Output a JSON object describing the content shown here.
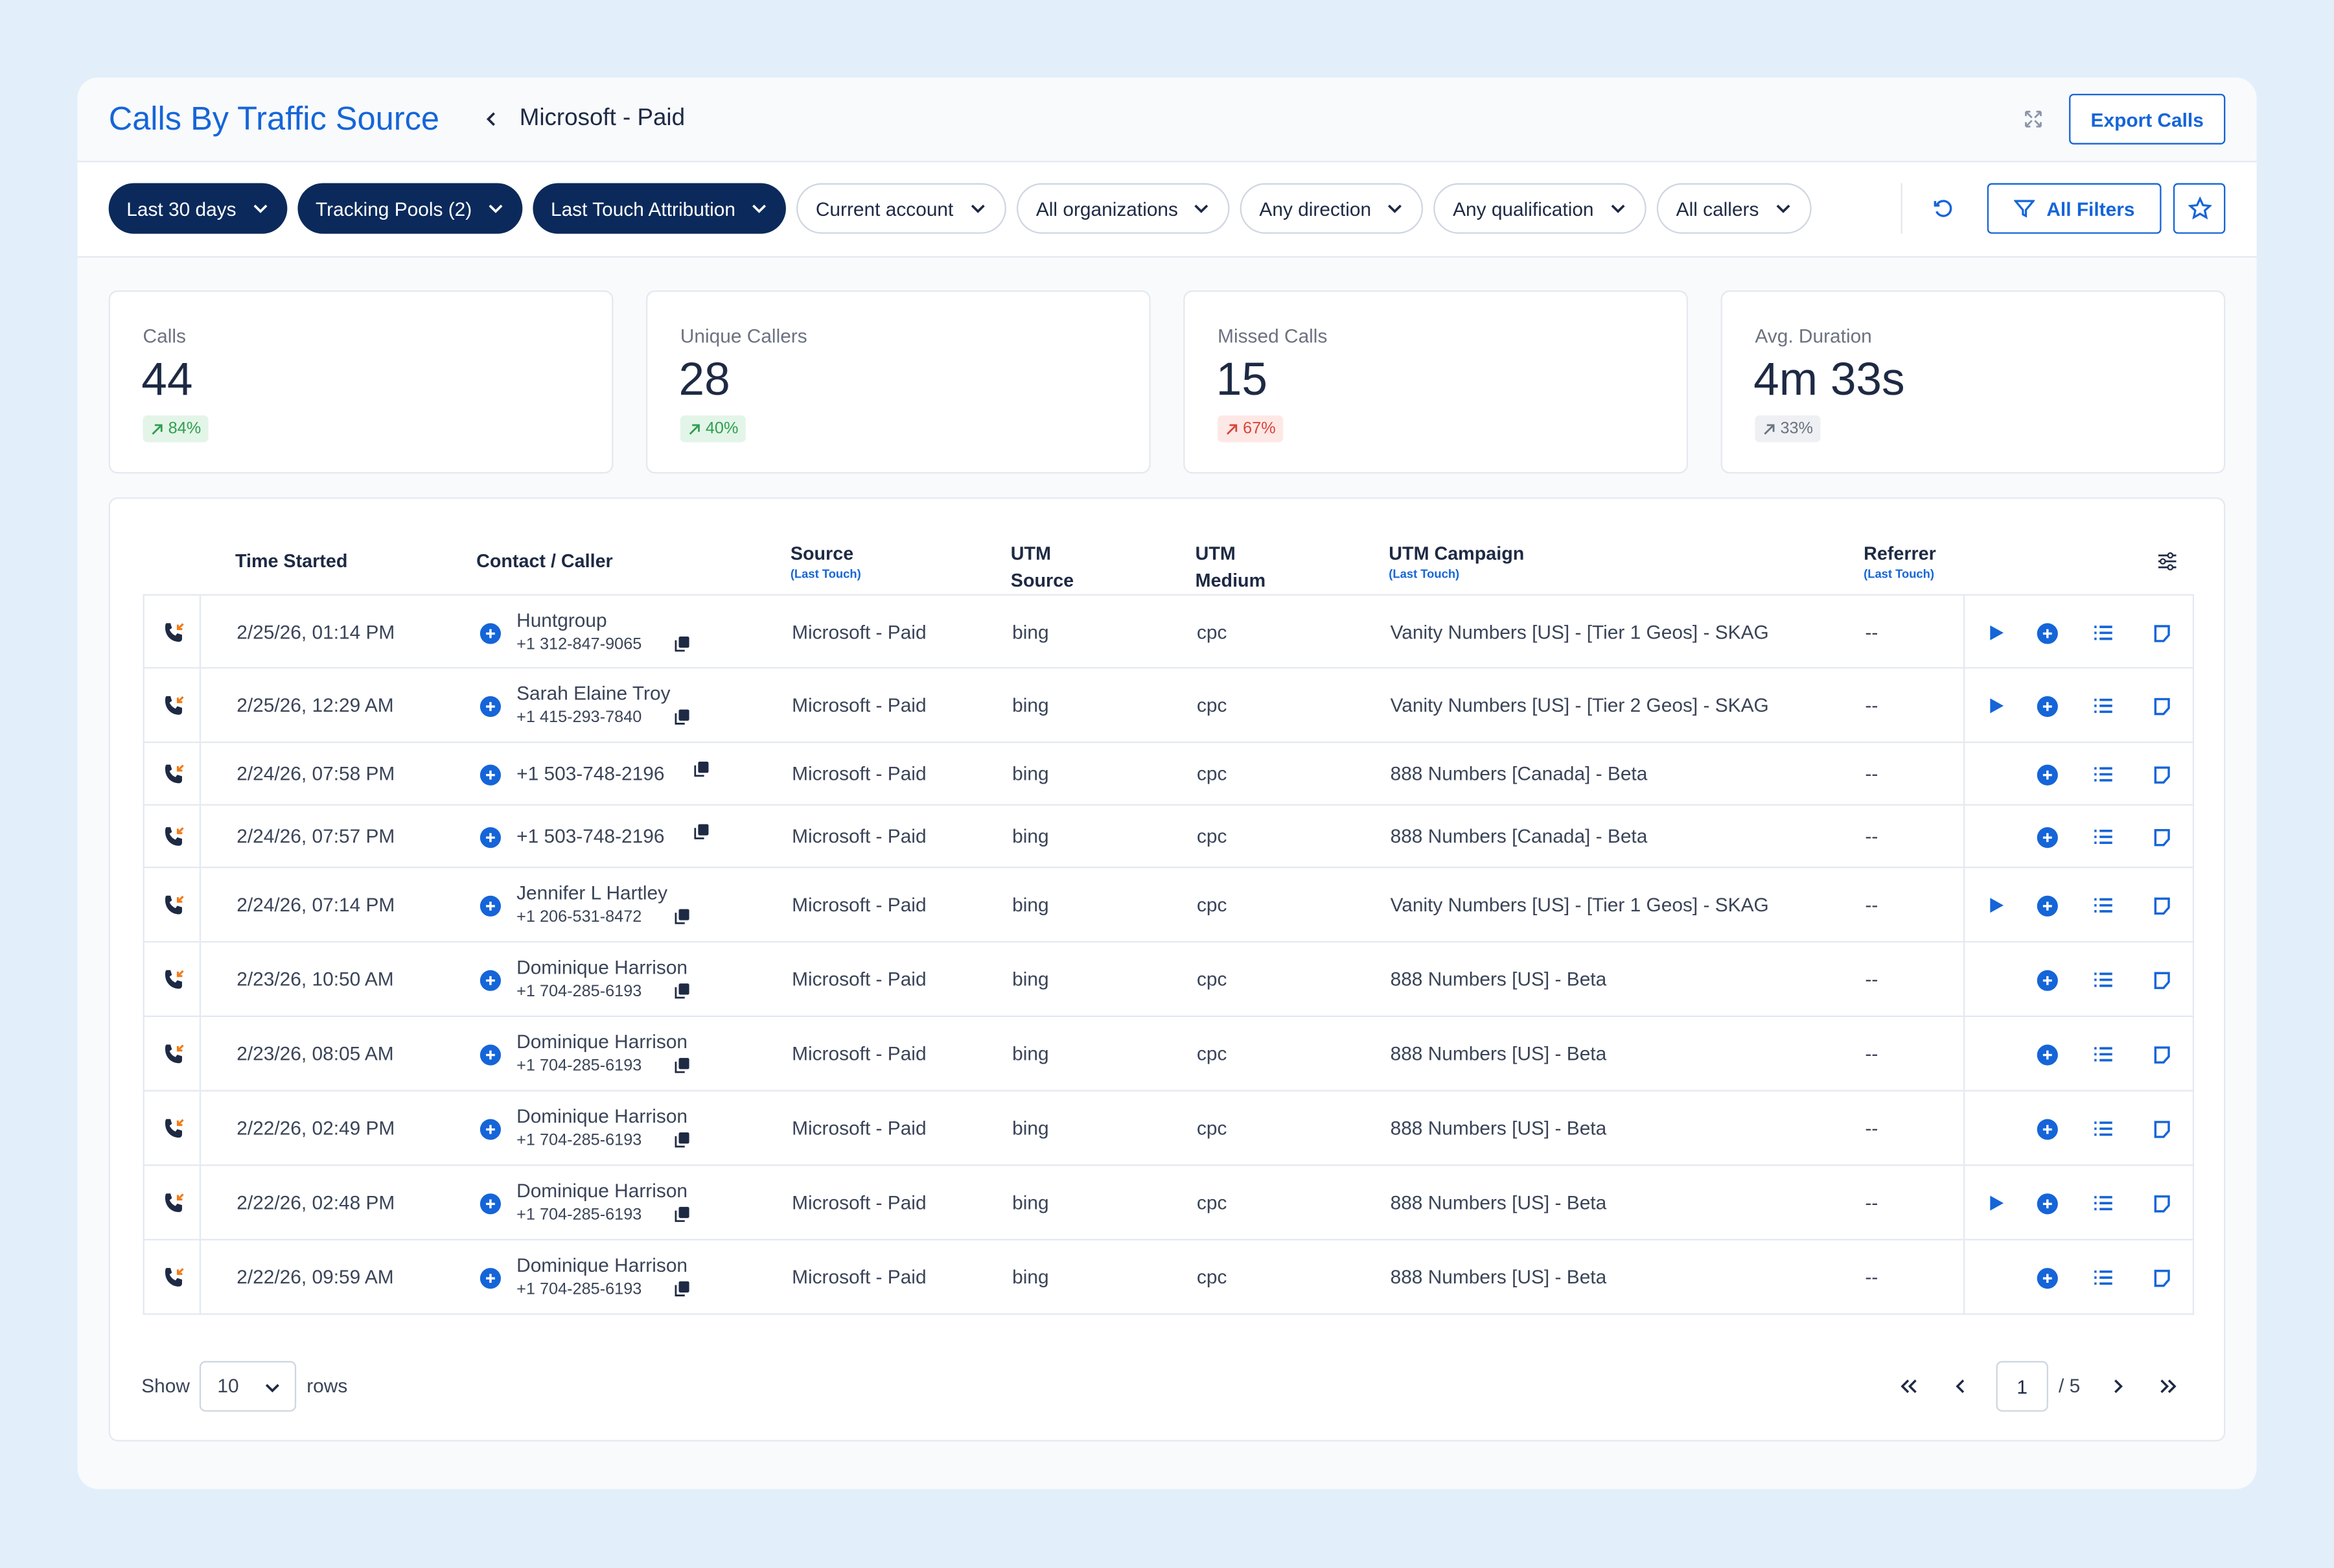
{
  "header": {
    "title": "Calls By Traffic Source",
    "breadcrumb": "Microsoft - Paid",
    "export": "Export Calls"
  },
  "filters": [
    {
      "label": "Last 30 days",
      "selected": true
    },
    {
      "label": "Tracking Pools (2)",
      "selected": true
    },
    {
      "label": "Last Touch Attribution",
      "selected": true
    },
    {
      "label": "Current account",
      "selected": false
    },
    {
      "label": "All organizations",
      "selected": false
    },
    {
      "label": "Any direction",
      "selected": false
    },
    {
      "label": "Any qualification",
      "selected": false
    },
    {
      "label": "All callers",
      "selected": false
    }
  ],
  "all_filters": "All Filters",
  "stats": [
    {
      "label": "Calls",
      "value": "44",
      "change": "84%",
      "tone": "positive"
    },
    {
      "label": "Unique Callers",
      "value": "28",
      "change": "40%",
      "tone": "positive"
    },
    {
      "label": "Missed Calls",
      "value": "15",
      "change": "67%",
      "tone": "negative"
    },
    {
      "label": "Avg. Duration",
      "value": "4m 33s",
      "change": "33%",
      "tone": "neutral"
    }
  ],
  "table": {
    "columns": [
      {
        "label": "Time Started"
      },
      {
        "label": "Contact / Caller"
      },
      {
        "label": "Source",
        "sub": "(Last Touch)"
      },
      {
        "label": "UTM Source"
      },
      {
        "label": "UTM Medium"
      },
      {
        "label": "UTM Campaign",
        "sub": "(Last Touch)"
      },
      {
        "label": "Referrer",
        "sub": "(Last Touch)"
      }
    ],
    "rows": [
      {
        "time": "2/25/26, 01:14 PM",
        "name": "Huntgroup",
        "phone": "+1 312-847-9065",
        "source": "Microsoft - Paid",
        "utm_source": "bing",
        "utm_medium": "cpc",
        "campaign": "Vanity Numbers [US] - [Tier 1 Geos] - SKAG",
        "referrer": "--",
        "recording": true
      },
      {
        "time": "2/25/26, 12:29 AM",
        "name": "Sarah Elaine Troy",
        "phone": "+1 415-293-7840",
        "source": "Microsoft - Paid",
        "utm_source": "bing",
        "utm_medium": "cpc",
        "campaign": "Vanity Numbers [US] - [Tier 2 Geos] - SKAG",
        "referrer": "--",
        "recording": true
      },
      {
        "time": "2/24/26, 07:58 PM",
        "phone": "+1 503-748-2196",
        "source": "Microsoft - Paid",
        "utm_source": "bing",
        "utm_medium": "cpc",
        "campaign": "888 Numbers [Canada] - Beta",
        "referrer": "--",
        "recording": false
      },
      {
        "time": "2/24/26, 07:57 PM",
        "phone": "+1 503-748-2196",
        "source": "Microsoft - Paid",
        "utm_source": "bing",
        "utm_medium": "cpc",
        "campaign": "888 Numbers [Canada] - Beta",
        "referrer": "--",
        "recording": false
      },
      {
        "time": "2/24/26, 07:14 PM",
        "name": "Jennifer L Hartley",
        "phone": "+1 206-531-8472",
        "source": "Microsoft - Paid",
        "utm_source": "bing",
        "utm_medium": "cpc",
        "campaign": "Vanity Numbers [US] - [Tier 1 Geos] - SKAG",
        "referrer": "--",
        "recording": true
      },
      {
        "time": "2/23/26, 10:50 AM",
        "name": "Dominique Harrison",
        "phone": "+1 704-285-6193",
        "source": "Microsoft - Paid",
        "utm_source": "bing",
        "utm_medium": "cpc",
        "campaign": "888 Numbers [US] - Beta",
        "referrer": "--",
        "recording": false
      },
      {
        "time": "2/23/26, 08:05 AM",
        "name": "Dominique Harrison",
        "phone": "+1 704-285-6193",
        "source": "Microsoft - Paid",
        "utm_source": "bing",
        "utm_medium": "cpc",
        "campaign": "888 Numbers [US] - Beta",
        "referrer": "--",
        "recording": false
      },
      {
        "time": "2/22/26, 02:49 PM",
        "name": "Dominique Harrison",
        "phone": "+1 704-285-6193",
        "source": "Microsoft - Paid",
        "utm_source": "bing",
        "utm_medium": "cpc",
        "campaign": "888 Numbers [US] - Beta",
        "referrer": "--",
        "recording": false
      },
      {
        "time": "2/22/26, 02:48 PM",
        "name": "Dominique Harrison",
        "phone": "+1 704-285-6193",
        "source": "Microsoft - Paid",
        "utm_source": "bing",
        "utm_medium": "cpc",
        "campaign": "888 Numbers [US] - Beta",
        "referrer": "--",
        "recording": true
      },
      {
        "time": "2/22/26, 09:59 AM",
        "name": "Dominique Harrison",
        "phone": "+1 704-285-6193",
        "source": "Microsoft - Paid",
        "utm_source": "bing",
        "utm_medium": "cpc",
        "campaign": "888 Numbers [US] - Beta",
        "referrer": "--",
        "recording": false
      }
    ]
  },
  "footer": {
    "show": "Show",
    "rows_per_page": "10",
    "rows": "rows",
    "page": "1",
    "total_pages": "/ 5"
  }
}
